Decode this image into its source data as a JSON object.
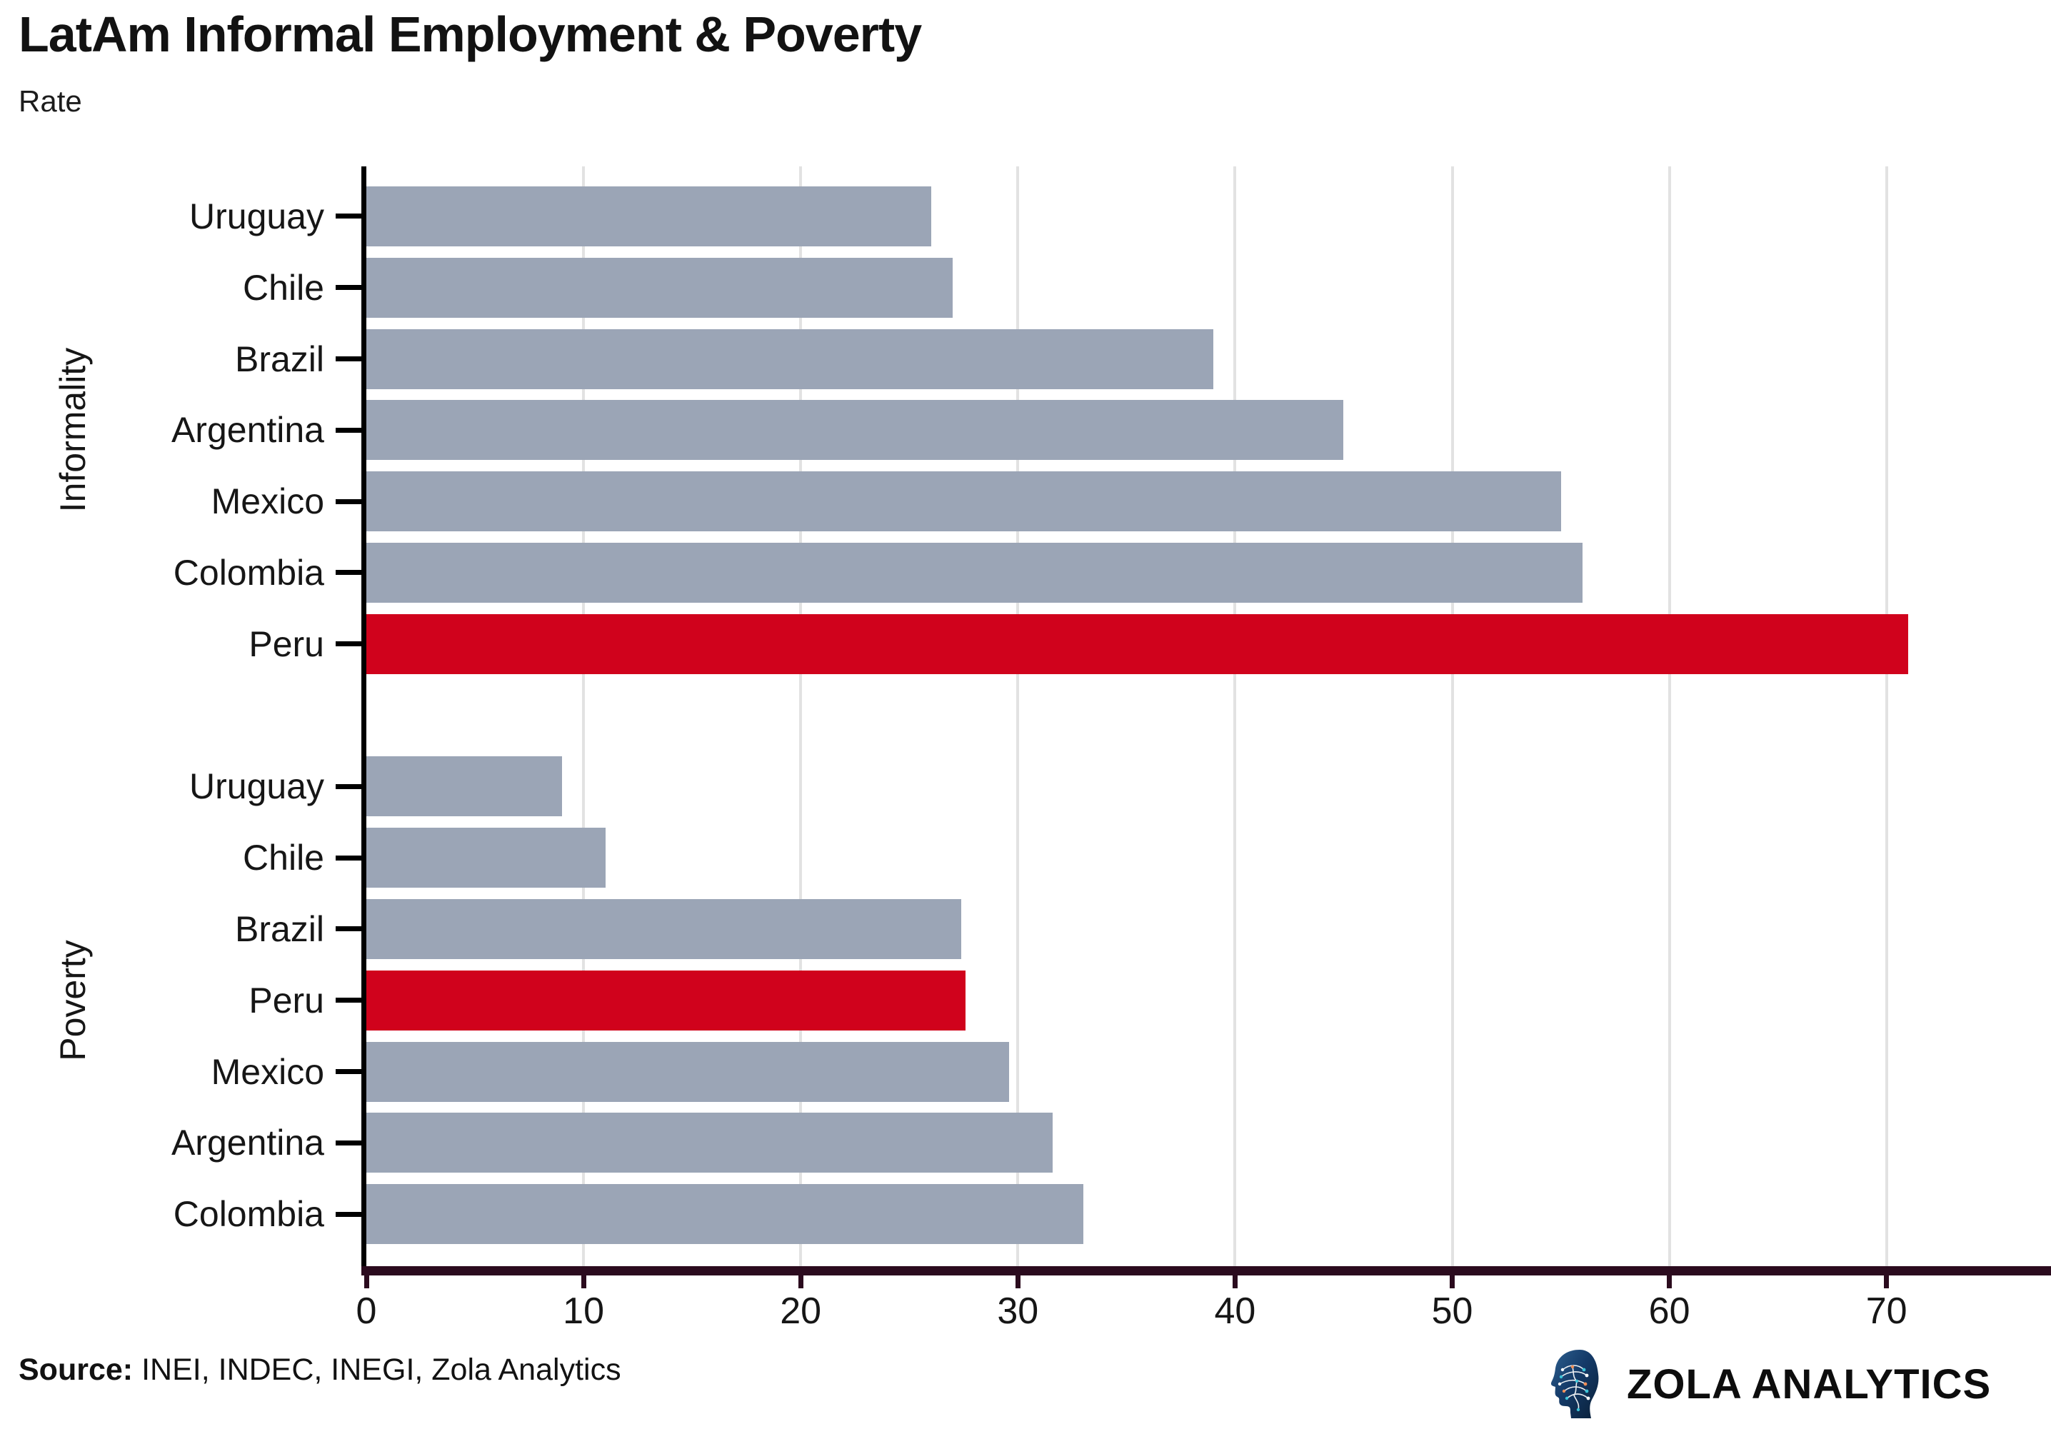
{
  "header": {
    "title": "LatAm Informal Employment & Poverty",
    "subtitle": "Rate"
  },
  "footer": {
    "source_label": "Source:",
    "source_text": "INEI, INDEC, INEGI, Zola Analytics",
    "brand": "ZOLA ANALYTICS"
  },
  "colors": {
    "bar_default": "#9ba5b6",
    "bar_highlight": "#d0021c",
    "grid": "#e2e2e2",
    "value_axis": "#2b0b1e",
    "category_axis": "#000000",
    "text": "#161616"
  },
  "chart_data": {
    "type": "bar",
    "orientation": "horizontal",
    "title": "LatAm Informal Employment & Poverty",
    "subtitle": "Rate",
    "xlabel": "",
    "ylabel": "",
    "x_ticks": [
      0,
      10,
      20,
      30,
      40,
      50,
      60,
      70
    ],
    "xlim": [
      0,
      77.5
    ],
    "grid": "vertical",
    "legend": "none",
    "highlight_category": "Peru",
    "groups": [
      {
        "label": "Informality",
        "categories": [
          "Uruguay",
          "Chile",
          "Brazil",
          "Argentina",
          "Mexico",
          "Colombia",
          "Peru"
        ],
        "values": [
          26,
          27,
          39,
          45,
          55,
          56,
          71
        ]
      },
      {
        "label": "Poverty",
        "categories": [
          "Uruguay",
          "Chile",
          "Brazil",
          "Peru",
          "Mexico",
          "Argentina",
          "Colombia"
        ],
        "values": [
          9,
          11,
          27.4,
          27.6,
          29.6,
          31.6,
          33
        ]
      }
    ]
  }
}
